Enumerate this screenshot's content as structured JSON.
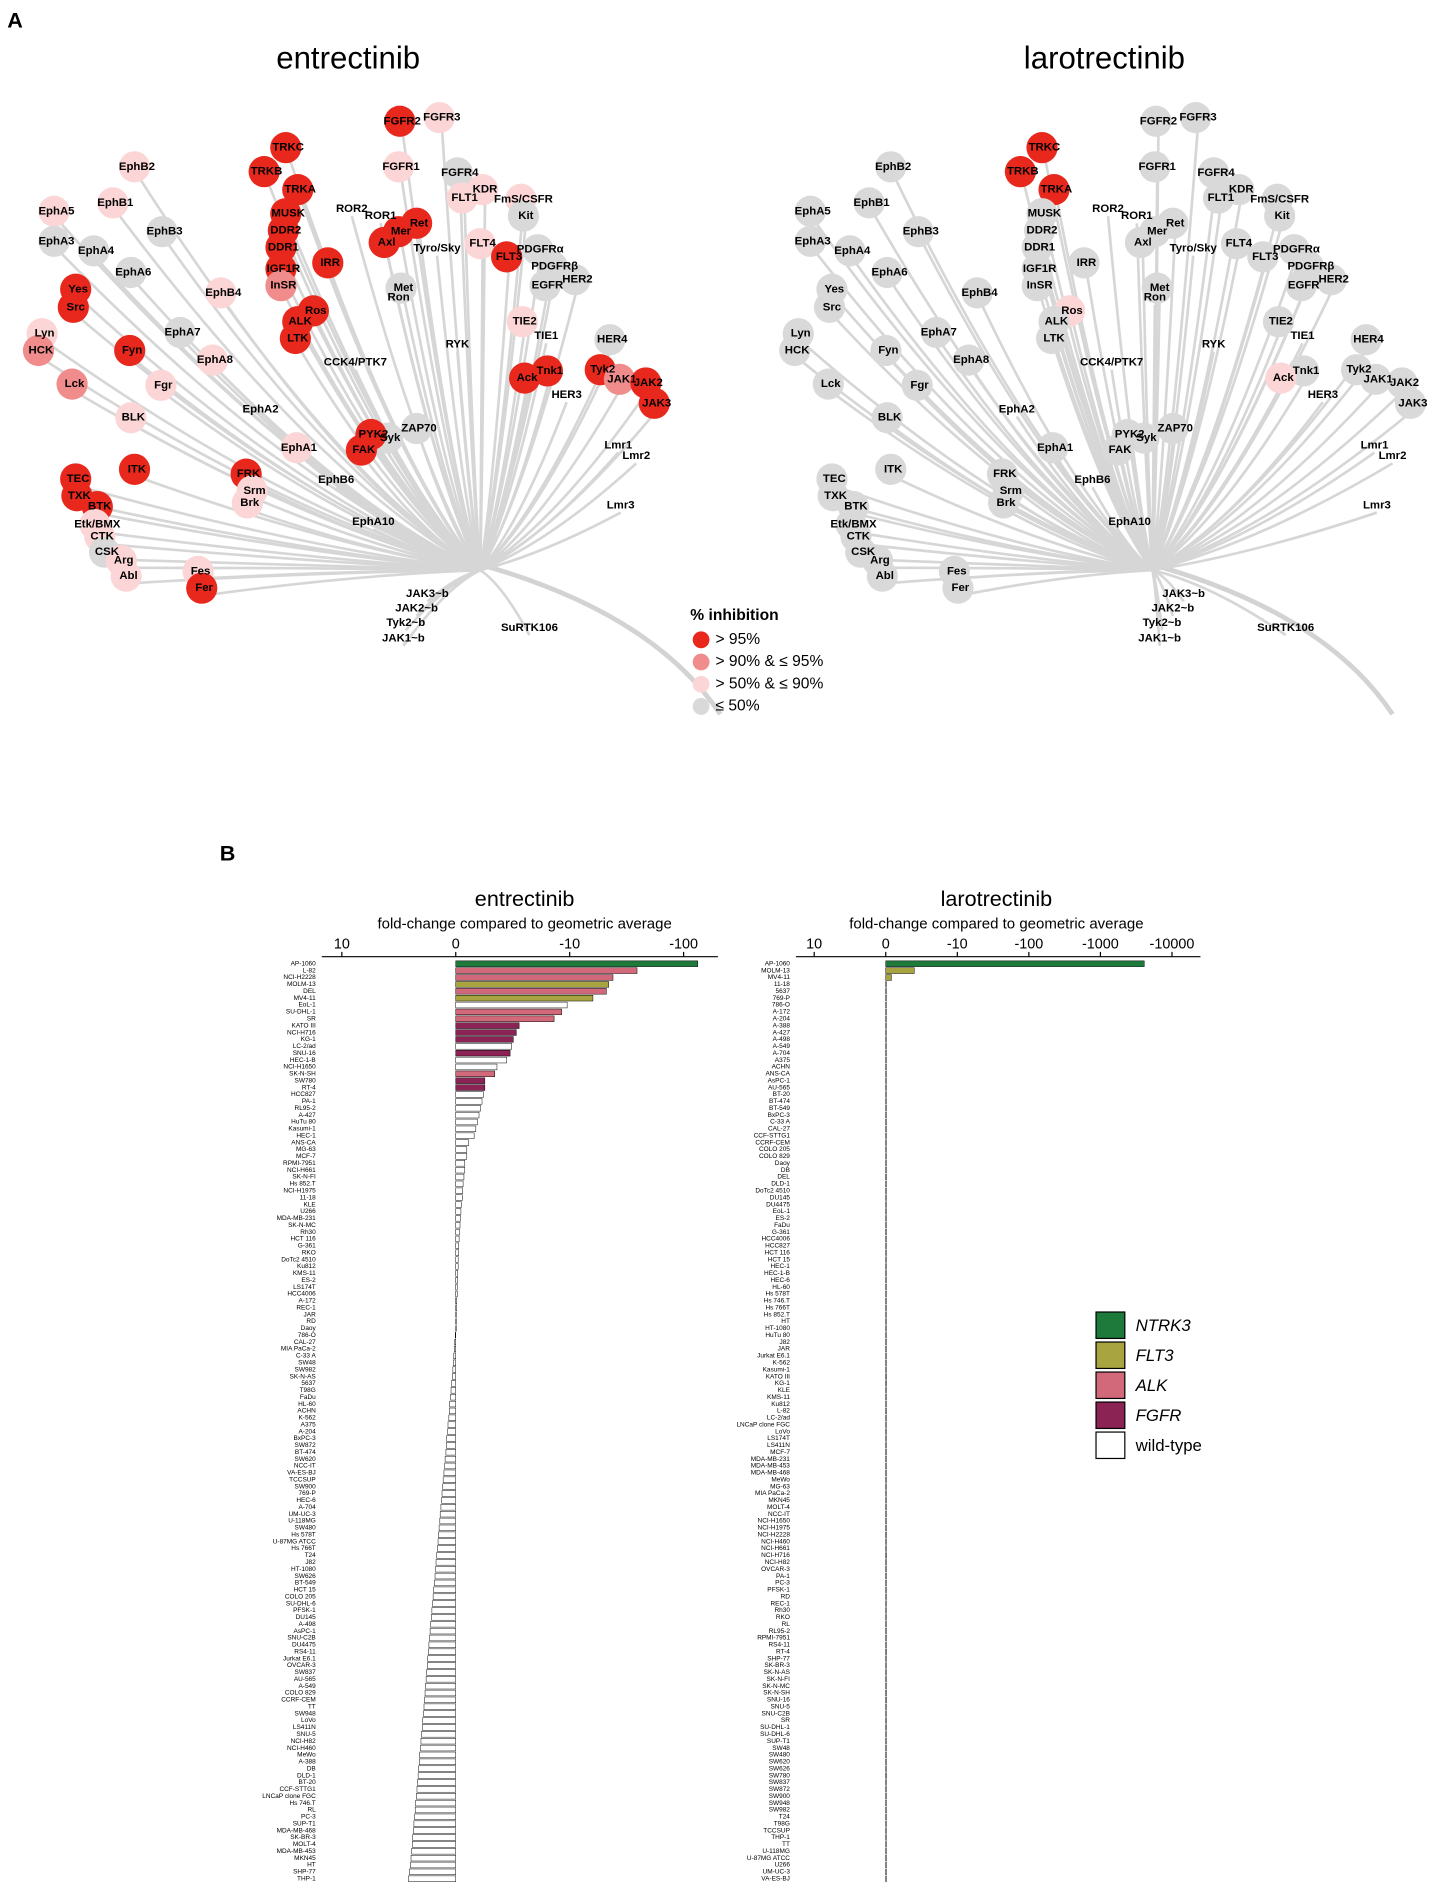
{
  "kinase_tree": {
    "label": "A",
    "legend_title": "% inhibition",
    "legend": [
      {
        "label": "> 95%",
        "color": "#e8281c"
      },
      {
        "label": "> 90% & ≤ 95%",
        "color": "#f08c8c"
      },
      {
        "label": "> 50% & ≤ 90%",
        "color": "#fcd6d6"
      },
      {
        "label": "≤ 50%",
        "color": "#d9d9d9"
      }
    ],
    "kinases": [
      "TRKC",
      "TRKB",
      "TRKA",
      "MUSK",
      "DDR2",
      "DDR1",
      "IGF1R",
      "InSR",
      "IRR",
      "ROR2",
      "ROR1",
      "Mer",
      "Axl",
      "Ret",
      "Tyro/Sky",
      "FGFR2",
      "FGFR3",
      "FGFR1",
      "FGFR4",
      "FLT1",
      "KDR",
      "FmS/CSFR",
      "Kit",
      "FLT4",
      "FLT3",
      "PDGFRα",
      "PDGFRβ",
      "EGFR",
      "HER2",
      "Met",
      "Ron",
      "TIE2",
      "TIE1",
      "RYK",
      "HER4",
      "Tnk1",
      "Ack",
      "HER3",
      "Tyk2",
      "JAK1",
      "JAK2",
      "JAK3",
      "Lmr1",
      "Lmr2",
      "Lmr3",
      "ZAP70",
      "Syk",
      "PYK2",
      "FAK",
      "EphA1",
      "EphB6",
      "EphA10",
      "EphA2",
      "CCK4/PTK7",
      "Ros",
      "ALK",
      "LTK",
      "EphB4",
      "EphA7",
      "EphA8",
      "EphB2",
      "EphB1",
      "EphB3",
      "EphA5",
      "EphA3",
      "EphA4",
      "EphA6",
      "Yes",
      "Src",
      "Lyn",
      "HCK",
      "Fyn",
      "Lck",
      "Fgr",
      "BLK",
      "ITK",
      "TEC",
      "TXK",
      "BTK",
      "Etk/BMX",
      "CTK",
      "CSK",
      "Arg",
      "Abl",
      "FRK",
      "Srm",
      "Brk",
      "Fes",
      "Fer",
      "JAK3~b",
      "JAK2~b",
      "Tyk2~b",
      "JAK1~b",
      "SuRTK106"
    ],
    "trees": [
      {
        "title": "entrectinib",
        "inhibition": [
          "> 95%",
          "> 95%",
          "> 95%",
          "> 95%",
          "> 95%",
          "> 95%",
          "> 95%",
          "> 90% & ≤ 95%",
          "> 95%",
          null,
          null,
          "> 95%",
          "> 95%",
          "> 95%",
          null,
          "> 95%",
          "> 50% & ≤ 90%",
          "> 50% & ≤ 90%",
          "≤ 50%",
          "> 50% & ≤ 90%",
          "> 50% & ≤ 90%",
          "> 50% & ≤ 90%",
          "≤ 50%",
          "> 50% & ≤ 90%",
          "> 95%",
          "≤ 50%",
          "≤ 50%",
          "≤ 50%",
          "≤ 50%",
          "≤ 50%",
          null,
          "> 50% & ≤ 90%",
          null,
          null,
          "≤ 50%",
          "> 95%",
          "> 95%",
          null,
          "> 95%",
          "> 90% & ≤ 95%",
          "> 95%",
          "> 95%",
          null,
          null,
          null,
          "≤ 50%",
          "≤ 50%",
          "> 95%",
          "> 95%",
          "> 50% & ≤ 90%",
          null,
          null,
          null,
          null,
          "> 95%",
          "> 95%",
          "> 95%",
          "> 50% & ≤ 90%",
          "≤ 50%",
          "> 50% & ≤ 90%",
          "> 50% & ≤ 90%",
          "> 50% & ≤ 90%",
          "≤ 50%",
          "> 50% & ≤ 90%",
          "≤ 50%",
          "≤ 50%",
          "≤ 50%",
          "> 95%",
          "> 95%",
          "> 50% & ≤ 90%",
          "> 90% & ≤ 95%",
          "> 95%",
          "> 90% & ≤ 95%",
          "> 50% & ≤ 90%",
          "> 50% & ≤ 90%",
          "> 95%",
          "> 95%",
          "> 95%",
          "> 95%",
          "> 50% & ≤ 90%",
          "> 50% & ≤ 90%",
          "≤ 50%",
          "> 50% & ≤ 90%",
          "> 50% & ≤ 90%",
          "> 95%",
          "> 50% & ≤ 90%",
          "> 50% & ≤ 90%",
          "> 50% & ≤ 90%",
          "> 95%",
          null,
          null,
          null,
          null,
          null
        ]
      },
      {
        "title": "larotrectinib",
        "inhibition": [
          "> 95%",
          "> 95%",
          "> 95%",
          "≤ 50%",
          "≤ 50%",
          "≤ 50%",
          "≤ 50%",
          "≤ 50%",
          "≤ 50%",
          null,
          null,
          "≤ 50%",
          "≤ 50%",
          "≤ 50%",
          null,
          "≤ 50%",
          "≤ 50%",
          "≤ 50%",
          "≤ 50%",
          "≤ 50%",
          "≤ 50%",
          "≤ 50%",
          "≤ 50%",
          "≤ 50%",
          "≤ 50%",
          "≤ 50%",
          "≤ 50%",
          "≤ 50%",
          "≤ 50%",
          "≤ 50%",
          null,
          "≤ 50%",
          null,
          null,
          "≤ 50%",
          "≤ 50%",
          "> 50% & ≤ 90%",
          null,
          "≤ 50%",
          "≤ 50%",
          "≤ 50%",
          "≤ 50%",
          null,
          null,
          null,
          "≤ 50%",
          "≤ 50%",
          "≤ 50%",
          "≤ 50%",
          "≤ 50%",
          null,
          null,
          null,
          null,
          "> 50% & ≤ 90%",
          "≤ 50%",
          "≤ 50%",
          "≤ 50%",
          "≤ 50%",
          "≤ 50%",
          "≤ 50%",
          "≤ 50%",
          "≤ 50%",
          "≤ 50%",
          "≤ 50%",
          "≤ 50%",
          "≤ 50%",
          "≤ 50%",
          "≤ 50%",
          "≤ 50%",
          "≤ 50%",
          "≤ 50%",
          "≤ 50%",
          "≤ 50%",
          "≤ 50%",
          "≤ 50%",
          "≤ 50%",
          "≤ 50%",
          "≤ 50%",
          "≤ 50%",
          "≤ 50%",
          "≤ 50%",
          "≤ 50%",
          "≤ 50%",
          "≤ 50%",
          "≤ 50%",
          "≤ 50%",
          "≤ 50%",
          "≤ 50%",
          null,
          null,
          null,
          null,
          null
        ]
      }
    ]
  },
  "panel_b_label": "B",
  "genotype_legend": [
    {
      "label": "NTRK3",
      "color": "#1d7a3a",
      "italic": true,
      "cell_lines": [
        "AP-1060"
      ]
    },
    {
      "label": "FLT3",
      "color": "#a8a43f",
      "italic": true,
      "cell_lines": [
        "MOLM-13",
        "MV4-11"
      ]
    },
    {
      "label": "ALK",
      "color": "#d2697a",
      "italic": true,
      "cell_lines": [
        "L-82",
        "NCI-H2228",
        "DEL",
        "SU-DHL-1",
        "SR",
        "SK-N-SH"
      ]
    },
    {
      "label": "FGFR",
      "color": "#8b2455",
      "italic": true,
      "cell_lines": [
        "KATO III",
        "NCI-H716",
        "KG-1",
        "SNU-16",
        "SW780",
        "RT-4"
      ]
    },
    {
      "label": "wild-type",
      "color": "#ffffff"
    }
  ],
  "chart_data": [
    {
      "type": "bar",
      "orientation": "horizontal",
      "title": "entrectinib",
      "xlabel": "fold-change compared to geometric average",
      "xscale": "symlog",
      "xlim": [
        15,
        -200
      ],
      "xticks": [
        10,
        0,
        -10,
        -100
      ],
      "categories": [
        "AP-1060",
        "L-82",
        "NCI-H2228",
        "MOLM-13",
        "DEL",
        "MV4-11",
        "EoL-1",
        "SU-DHL-1",
        "SR",
        "KATO III",
        "NCI-H716",
        "KG-1",
        "LC-2/ad",
        "SNU-16",
        "HEC-1-B",
        "NCI-H1650",
        "SK-N-SH",
        "SW780",
        "RT-4",
        "HCC827",
        "PA-1",
        "RL95-2",
        "A-427",
        "HuTu 80",
        "Kasumi-1",
        "HEC-1",
        "ANS-CA",
        "MG-63",
        "MCF-7",
        "RPMI-7951",
        "NCI-H661",
        "SK-N-FI",
        "Hs 852.T",
        "NCI-H1975",
        "11-18",
        "KLE",
        "U266",
        "MDA-MB-231",
        "SK-N-MC",
        "Rh30",
        "HCT 116",
        "G-361",
        "RKO",
        "DoTc2 4510",
        "Ku812",
        "KMS-11",
        "ES-2",
        "LS174T",
        "HCC4006",
        "A-172",
        "REC-1",
        "JAR",
        "RD",
        "Daoy",
        "786-O",
        "CAL-27",
        "MIA PaCa-2",
        "C-33 A",
        "SW48",
        "SW982",
        "SK-N-AS",
        "5637",
        "T98G",
        "FaDu",
        "HL-60",
        "ACHN",
        "K-562",
        "A375",
        "A-204",
        "BxPC-3",
        "SW872",
        "BT-474",
        "SW620",
        "NCC-IT",
        "VA-ES-BJ",
        "TCCSUP",
        "SW900",
        "769-P",
        "HEC-6",
        "A-704",
        "UM-UC-3",
        "U-118MG",
        "SW480",
        "Hs 578T",
        "U-87MG ATCC",
        "Hs 766T",
        "T24",
        "J82",
        "HT-1080",
        "SW626",
        "BT-549",
        "HCT 15",
        "COLO 205",
        "SU-DHL-6",
        "PFSK-1",
        "DU145",
        "A-498",
        "AsPC-1",
        "SNU-C2B",
        "DU4475",
        "RS4-11",
        "Jurkat E6.1",
        "OVCAR-3",
        "SW837",
        "AU-565",
        "A-549",
        "COLO 829",
        "CCRF-CEM",
        "TT",
        "SW948",
        "LoVo",
        "LS411N",
        "SNU-5",
        "NCI-H82",
        "NCI-H460",
        "MeWo",
        "A-388",
        "DB",
        "DLD-1",
        "BT-20",
        "CCF-STTG1",
        "LNCaP clone FGC",
        "Hs 746.T",
        "RL",
        "PC-3",
        "SUP-T1",
        "MDA-MB-468",
        "SK-BR-3",
        "MOLT-4",
        "MDA-MB-453",
        "MKN45",
        "HT",
        "SHP-77",
        "THP-1"
      ],
      "values": [
        -133,
        -39,
        -24,
        -22,
        -21,
        -16,
        -9.5,
        -8.5,
        -7.3,
        -3.6,
        -3.4,
        -3.2,
        -3.1,
        -3,
        -2.8,
        -2.3,
        -2.2,
        -1.8,
        -1.8,
        -1.75,
        -1.7,
        -1.65,
        -1.6,
        -1.55,
        -1.5,
        -1.45,
        -1.3,
        -1.25,
        -1.25,
        -1.2,
        -1.2,
        -1.18,
        -1.16,
        -1.15,
        -1.14,
        -1.12,
        -1.11,
        -1.1,
        -1.09,
        -1.08,
        -1.07,
        -1.06,
        -1.06,
        -1.05,
        -1.05,
        -1.04,
        -1.04,
        -1.03,
        -1.03,
        -1.02,
        -1.02,
        -1.01,
        -1.01,
        -1.01,
        1.01,
        1.02,
        1.03,
        1.04,
        1.05,
        1.06,
        1.07,
        1.09,
        1.1,
        1.11,
        1.13,
        1.14,
        1.15,
        1.17,
        1.18,
        1.2,
        1.21,
        1.22,
        1.24,
        1.25,
        1.27,
        1.29,
        1.3,
        1.32,
        1.33,
        1.35,
        1.37,
        1.38,
        1.4,
        1.42,
        1.43,
        1.45,
        1.47,
        1.49,
        1.5,
        1.52,
        1.54,
        1.56,
        1.58,
        1.6,
        1.62,
        1.64,
        1.66,
        1.68,
        1.7,
        1.72,
        1.74,
        1.76,
        1.78,
        1.8,
        1.82,
        1.84,
        1.86,
        1.88,
        1.9,
        1.92,
        1.95,
        1.97,
        2,
        2.02,
        2.04,
        2.07,
        2.09,
        2.12,
        2.14,
        2.17,
        2.19,
        2.22,
        2.25,
        2.27,
        2.3,
        2.33,
        2.36,
        2.39,
        2.41,
        2.44,
        2.47,
        2.5,
        2.55,
        2.6
      ]
    },
    {
      "type": "bar",
      "orientation": "horizontal",
      "title": "larotrectinib",
      "xlabel": "fold-change compared to geometric average",
      "xscale": "symlog",
      "xlim": [
        18,
        -25000
      ],
      "xticks": [
        10,
        0,
        -10,
        -100,
        -1000,
        -10000
      ],
      "categories": [
        "AP-1060",
        "MOLM-13",
        "MV4-11",
        "11-18",
        "5637",
        "769-P",
        "786-O",
        "A-172",
        "A-204",
        "A-388",
        "A-427",
        "A-498",
        "A-549",
        "A-704",
        "A375",
        "ACHN",
        "ANS-CA",
        "AsPC-1",
        "AU-565",
        "BT-20",
        "BT-474",
        "BT-549",
        "BxPC-3",
        "C-33 A",
        "CAL-27",
        "CCF-STTG1",
        "CCRF-CEM",
        "COLO 205",
        "COLO 829",
        "Daoy",
        "DB",
        "DEL",
        "DLD-1",
        "DoTc2 4510",
        "DU145",
        "DU4475",
        "EoL-1",
        "ES-2",
        "FaDu",
        "G-361",
        "HCC4006",
        "HCC827",
        "HCT 116",
        "HCT 15",
        "HEC-1",
        "HEC-1-B",
        "HEC-6",
        "HL-60",
        "Hs 578T",
        "Hs 746.T",
        "Hs 766T",
        "Hs 852.T",
        "HT",
        "HT-1080",
        "HuTu 80",
        "J82",
        "JAR",
        "Jurkat E6.1",
        "K-562",
        "Kasumi-1",
        "KATO III",
        "KG-1",
        "KLE",
        "KMS-11",
        "Ku812",
        "L-82",
        "LC-2/ad",
        "LNCaP clone FGC",
        "LoVo",
        "LS174T",
        "LS411N",
        "MCF-7",
        "MDA-MB-231",
        "MDA-MB-453",
        "MDA-MB-468",
        "MeWo",
        "MG-63",
        "MIA PaCa-2",
        "MKN45",
        "MOLT-4",
        "NCC-IT",
        "NCI-H1650",
        "NCI-H1975",
        "NCI-H2228",
        "NCI-H460",
        "NCI-H661",
        "NCI-H716",
        "NCI-H82",
        "OVCAR-3",
        "PA-1",
        "PC-3",
        "PFSK-1",
        "RD",
        "REC-1",
        "Rh30",
        "RKO",
        "RL",
        "RL95-2",
        "RPMI-7951",
        "RS4-11",
        "RT-4",
        "SHP-77",
        "SK-BR-3",
        "SK-N-AS",
        "SK-N-FI",
        "SK-N-MC",
        "SK-N-SH",
        "SNU-16",
        "SNU-5",
        "SNU-C2B",
        "SR",
        "SU-DHL-1",
        "SU-DHL-6",
        "SUP-T1",
        "SW48",
        "SW480",
        "SW620",
        "SW626",
        "SW780",
        "SW837",
        "SW872",
        "SW900",
        "SW948",
        "SW982",
        "T24",
        "T98G",
        "TCCSUP",
        "THP-1",
        "TT",
        "U-118MG",
        "U-87MG ATCC",
        "U266",
        "UM-UC-3",
        "VA-ES-BJ"
      ],
      "values": [
        -4100,
        -2.5,
        -1.2,
        -1.02,
        -1.02,
        -1.02,
        -1.02,
        -1.02,
        -1.02,
        -1.02,
        -1.02,
        -1.02,
        -1.02,
        -1.02,
        -1.02,
        -1.02,
        -1.02,
        -1.02,
        -1.02,
        -1.02,
        -1.02,
        -1.02,
        -1.02,
        -1.02,
        -1.02,
        -1.02,
        -1.02,
        -1.02,
        -1.02,
        -1.02,
        -1.02,
        -1.02,
        -1.02,
        -1.02,
        -1.02,
        -1.02,
        -1.02,
        -1.02,
        -1.02,
        -1.02,
        -1.02,
        -1.02,
        -1.02,
        -1.02,
        -1.02,
        -1.02,
        -1.02,
        -1.02,
        -1.02,
        -1.02,
        -1.02,
        -1.02,
        -1.02,
        -1.02,
        -1.02,
        -1.02,
        -1.02,
        -1.02,
        -1.02,
        -1.02,
        -1.02,
        -1.02,
        -1.02,
        -1.02,
        -1.02,
        -1.02,
        -1.02,
        -1.02,
        -1.02,
        -1.02,
        -1.02,
        -1.02,
        -1.02,
        -1.02,
        -1.02,
        -1.02,
        -1.02,
        -1.02,
        -1.02,
        -1.02,
        -1.02,
        -1.02,
        -1.02,
        -1.02,
        -1.02,
        -1.02,
        -1.02,
        -1.02,
        -1.02,
        -1.02,
        -1.02,
        -1.02,
        -1.02,
        -1.02,
        -1.02,
        -1.02,
        -1.02,
        -1.02,
        -1.02,
        -1.02,
        -1.02,
        -1.02,
        -1.02,
        -1.02,
        -1.02,
        -1.02,
        -1.02,
        -1.02,
        -1.02,
        -1.02,
        -1.02,
        -1.02,
        -1.02,
        -1.02,
        -1.02,
        -1.02,
        -1.02,
        -1.02,
        -1.02,
        -1.02,
        -1.02,
        -1.02,
        -1.02,
        -1.02,
        -1.02,
        -1.02,
        -1.02,
        -1.02,
        -1.02,
        -1.02,
        -1.02,
        -1.02,
        -1.02,
        -1.02
      ]
    }
  ]
}
